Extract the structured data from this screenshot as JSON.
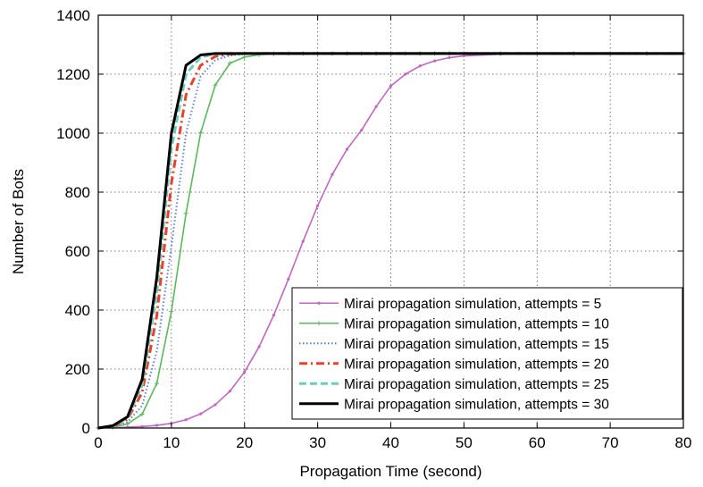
{
  "chart_data": {
    "type": "line",
    "title": "",
    "xlabel": "Propagation Time (second)",
    "ylabel": "Number of Bots",
    "xlim": [
      0,
      80
    ],
    "ylim": [
      0,
      1400
    ],
    "xticks": [
      0,
      10,
      20,
      30,
      40,
      50,
      60,
      70,
      80
    ],
    "yticks": [
      0,
      200,
      400,
      600,
      800,
      1000,
      1200,
      1400
    ],
    "grid": true,
    "legend_position": "bottom-right",
    "x": [
      0,
      2,
      4,
      6,
      8,
      10,
      12,
      14,
      16,
      18,
      20,
      22,
      24,
      26,
      28,
      30,
      32,
      34,
      36,
      38,
      40,
      42,
      44,
      46,
      48,
      50,
      55,
      60,
      65,
      70,
      75,
      80
    ],
    "series": [
      {
        "name": "Mirai propagation simulation, attempts = 5",
        "color": "#c266c2",
        "style": "solid-dot-marker",
        "values": [
          0,
          1,
          3,
          5,
          9,
          16,
          28,
          48,
          79,
          125,
          190,
          276,
          383,
          505,
          633,
          754,
          860,
          945,
          1010,
          1090,
          1160,
          1200,
          1228,
          1245,
          1256,
          1262,
          1268,
          1270,
          1270,
          1270,
          1270,
          1270
        ]
      },
      {
        "name": "Mirai propagation simulation, attempts = 10",
        "color": "#5cb85c",
        "style": "solid-plus-marker",
        "values": [
          0,
          3,
          14,
          47,
          151,
          395,
          728,
          1001,
          1163,
          1237,
          1258,
          1266,
          1269,
          1270,
          1270,
          1270,
          1270,
          1270,
          1270,
          1270,
          1270,
          1270,
          1270,
          1270,
          1270,
          1270,
          1270,
          1270,
          1270,
          1270,
          1270,
          1270
        ]
      },
      {
        "name": "Mirai propagation simulation, attempts = 15",
        "color": "#5b7fd6",
        "style": "dotted",
        "values": [
          0,
          5,
          20,
          76,
          260,
          616,
          1000,
          1193,
          1248,
          1263,
          1268,
          1270,
          1270,
          1270,
          1270,
          1270,
          1270,
          1270,
          1270,
          1270,
          1270,
          1270,
          1270,
          1270,
          1270,
          1270,
          1270,
          1270,
          1270,
          1270,
          1270,
          1270
        ]
      },
      {
        "name": "Mirai propagation simulation, attempts = 20",
        "color": "#e8402a",
        "style": "dash-dot",
        "values": [
          0,
          6,
          30,
          120,
          380,
          830,
          1130,
          1230,
          1260,
          1268,
          1270,
          1270,
          1270,
          1270,
          1270,
          1270,
          1270,
          1270,
          1270,
          1270,
          1270,
          1270,
          1270,
          1270,
          1270,
          1270,
          1270,
          1270,
          1270,
          1270,
          1270,
          1270
        ]
      },
      {
        "name": "Mirai propagation simulation, attempts = 25",
        "color": "#6ccdbd",
        "style": "dashed",
        "values": [
          0,
          7,
          34,
          145,
          458,
          950,
          1200,
          1258,
          1268,
          1270,
          1270,
          1270,
          1270,
          1270,
          1270,
          1270,
          1270,
          1270,
          1270,
          1270,
          1270,
          1270,
          1270,
          1270,
          1270,
          1270,
          1270,
          1270,
          1270,
          1270,
          1270,
          1270
        ]
      },
      {
        "name": "Mirai propagation simulation, attempts = 30",
        "color": "#000000",
        "style": "solid",
        "values": [
          0,
          8,
          38,
          165,
          510,
          1000,
          1230,
          1265,
          1270,
          1270,
          1270,
          1270,
          1270,
          1270,
          1270,
          1270,
          1270,
          1270,
          1270,
          1270,
          1270,
          1270,
          1270,
          1270,
          1270,
          1270,
          1270,
          1270,
          1270,
          1270,
          1270,
          1270
        ]
      }
    ]
  }
}
